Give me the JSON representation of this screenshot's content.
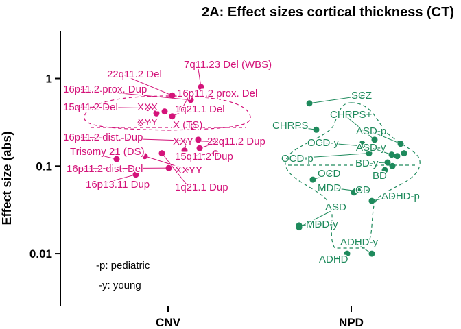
{
  "chart_data": {
    "type": "scatter",
    "title": "2A: Effect sizes cortical thickness (CT)",
    "ylabel": "Effect size (abs)",
    "yscale": "log",
    "ylim": [
      0.0025,
      3.5
    ],
    "yticks": [
      0.01,
      0.1,
      1
    ],
    "ytick_labels": [
      "0.01",
      "0.1",
      "1"
    ],
    "categories": [
      "CNV",
      "NPD"
    ],
    "colors": {
      "CNV": "#d4147a",
      "NPD": "#1e8a5c"
    },
    "notes": [
      "-p: pediatric",
      "-y: young"
    ],
    "series": [
      {
        "name": "CNV",
        "points": [
          {
            "label": "7q11.23 Del (WBS)",
            "value": 0.8
          },
          {
            "label": "22q11.2 Del",
            "value": 0.64
          },
          {
            "label": "16p11.2 prox. Dup",
            "value": 0.57
          },
          {
            "label": "16p11.2 prox. Del",
            "value": 0.45
          },
          {
            "label": "15q11.2 Del",
            "value": 0.46
          },
          {
            "label": "XXX",
            "value": 0.4
          },
          {
            "label": "1q21.1 Del",
            "value": 0.37
          },
          {
            "label": "XYY",
            "value": 0.31
          },
          {
            "label": "X (TS)",
            "value": 0.29
          },
          {
            "label": "16p11.2 dist. Dup",
            "value": 0.19
          },
          {
            "label": "22q11.2 Dup",
            "value": 0.16
          },
          {
            "label": "XXY",
            "value": 0.15
          },
          {
            "label": "Trisomy 21 (DS)",
            "value": 0.12
          },
          {
            "label": "15q11.2 Dup",
            "value": 0.14
          },
          {
            "label": "16p11.2 dist. Del",
            "value": 0.095
          },
          {
            "label": "XXYY",
            "value": 0.13
          },
          {
            "label": "16p13.11 Dup",
            "value": 0.08
          },
          {
            "label": "1q21.1 Dup",
            "value": 0.14
          }
        ]
      },
      {
        "name": "NPD",
        "points": [
          {
            "label": "SCZ",
            "value": 0.52
          },
          {
            "label": "CHRPS+",
            "value": 0.2
          },
          {
            "label": "CHRPS",
            "value": 0.26
          },
          {
            "label": "ASD-p",
            "value": 0.18
          },
          {
            "label": "OCD-y",
            "value": 0.17
          },
          {
            "label": "ASD-y",
            "value": 0.135
          },
          {
            "label": "OCD-p",
            "value": 0.14
          },
          {
            "label": "BD-y",
            "value": 0.11
          },
          {
            "label": "OCD",
            "value": 0.07
          },
          {
            "label": "BD",
            "value": 0.09
          },
          {
            "label": "MDD",
            "value": 0.052
          },
          {
            "label": "CD",
            "value": 0.052
          },
          {
            "label": "ADHD-p",
            "value": 0.04
          },
          {
            "label": "ASD",
            "value": 0.02
          },
          {
            "label": "MDD-y",
            "value": 0.021
          },
          {
            "label": "ADHD-y",
            "value": 0.01
          },
          {
            "label": "ADHD",
            "value": 0.01
          }
        ]
      }
    ],
    "extra_points": {
      "CNV": [
        0.2,
        0.42,
        0.28
      ],
      "NPD": [
        0.18,
        0.16,
        0.13,
        0.14,
        0.1,
        0.05
      ]
    }
  }
}
